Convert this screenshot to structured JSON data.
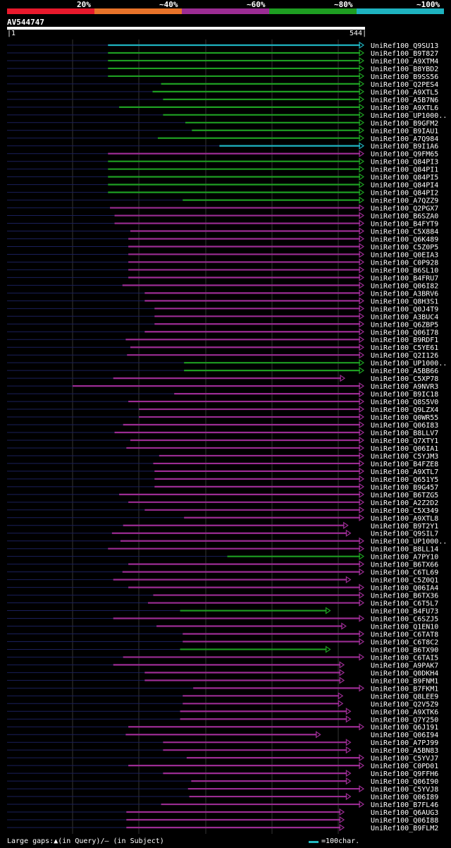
{
  "header": {
    "query_id": "AV544747",
    "start_label": "1",
    "end_label": "544",
    "identity_legend": [
      {
        "label": "20%",
        "color": "#e8192c"
      },
      {
        "label": "~40%",
        "color": "#e8732a"
      },
      {
        "label": "~60%",
        "color": "#9b2c93"
      },
      {
        "label": "~80%",
        "color": "#1e9e22"
      },
      {
        "label": "~100%",
        "color": "#1eb3c0"
      }
    ]
  },
  "footer": {
    "gaps_text": "Large gaps:▲(in Query)/— (in Subject)",
    "scale_text": "=100char."
  },
  "chart_data": {
    "type": "table",
    "query_length": 544,
    "hits": [
      {
        "id": "UniRef100_Q9SU13",
        "start": 154,
        "end": 544,
        "identity": "~100%"
      },
      {
        "id": "UniRef100_B9T827",
        "start": 154,
        "end": 544,
        "identity": "~80%"
      },
      {
        "id": "UniRef100_A9XTM4",
        "start": 154,
        "end": 544,
        "identity": "~80%"
      },
      {
        "id": "UniRef100_B8YBD2",
        "start": 154,
        "end": 544,
        "identity": "~80%"
      },
      {
        "id": "UniRef100_B9SS56",
        "start": 154,
        "end": 544,
        "identity": "~80%"
      },
      {
        "id": "UniRef100_Q2PES4",
        "start": 235,
        "end": 544,
        "identity": "~80%"
      },
      {
        "id": "UniRef100_A9XTL5",
        "start": 222,
        "end": 544,
        "identity": "~80%"
      },
      {
        "id": "UniRef100_A5B7N6",
        "start": 238,
        "end": 544,
        "identity": "~80%"
      },
      {
        "id": "UniRef100_A9XTL6",
        "start": 171,
        "end": 544,
        "identity": "~80%"
      },
      {
        "id": "UniRef100_UP1000..",
        "start": 238,
        "end": 544,
        "identity": "~80%"
      },
      {
        "id": "UniRef100_B9GFM2",
        "start": 272,
        "end": 544,
        "identity": "~80%"
      },
      {
        "id": "UniRef100_B9IAU1",
        "start": 282,
        "end": 544,
        "identity": "~80%"
      },
      {
        "id": "UniRef100_A7Q984",
        "start": 230,
        "end": 544,
        "identity": "~80%"
      },
      {
        "id": "UniRef100_B9I1A6",
        "start": 324,
        "end": 544,
        "identity": "~100%"
      },
      {
        "id": "UniRef100_Q9FM65",
        "start": 154,
        "end": 544,
        "identity": "~60%"
      },
      {
        "id": "UniRef100_Q84PI3",
        "start": 154,
        "end": 544,
        "identity": "~80%"
      },
      {
        "id": "UniRef100_Q84PI1",
        "start": 154,
        "end": 544,
        "identity": "~80%"
      },
      {
        "id": "UniRef100_Q84PI5",
        "start": 154,
        "end": 544,
        "identity": "~80%"
      },
      {
        "id": "UniRef100_Q84PI4",
        "start": 154,
        "end": 544,
        "identity": "~80%"
      },
      {
        "id": "UniRef100_Q84PI2",
        "start": 154,
        "end": 544,
        "identity": "~80%"
      },
      {
        "id": "UniRef100_A7QZZ9",
        "start": 268,
        "end": 544,
        "identity": "~80%"
      },
      {
        "id": "UniRef100_Q2PGX7",
        "start": 157,
        "end": 544,
        "identity": "~60%"
      },
      {
        "id": "UniRef100_B6SZA0",
        "start": 164,
        "end": 544,
        "identity": "~60%"
      },
      {
        "id": "UniRef100_B4FYT9",
        "start": 164,
        "end": 544,
        "identity": "~60%"
      },
      {
        "id": "UniRef100_C5X884",
        "start": 188,
        "end": 544,
        "identity": "~60%"
      },
      {
        "id": "UniRef100_Q6K489",
        "start": 185,
        "end": 544,
        "identity": "~60%"
      },
      {
        "id": "UniRef100_C5Z0P5",
        "start": 185,
        "end": 544,
        "identity": "~60%"
      },
      {
        "id": "UniRef100_Q0EIA3",
        "start": 185,
        "end": 544,
        "identity": "~60%"
      },
      {
        "id": "UniRef100_C0P928",
        "start": 185,
        "end": 544,
        "identity": "~60%"
      },
      {
        "id": "UniRef100_B6SL10",
        "start": 185,
        "end": 544,
        "identity": "~60%"
      },
      {
        "id": "UniRef100_B4FRU7",
        "start": 185,
        "end": 544,
        "identity": "~60%"
      },
      {
        "id": "UniRef100_Q06I82",
        "start": 176,
        "end": 544,
        "identity": "~60%"
      },
      {
        "id": "UniRef100_A3BRV6",
        "start": 210,
        "end": 544,
        "identity": "~60%"
      },
      {
        "id": "UniRef100_Q8H3S1",
        "start": 210,
        "end": 544,
        "identity": "~60%"
      },
      {
        "id": "UniRef100_Q0J4T9",
        "start": 225,
        "end": 544,
        "identity": "~60%"
      },
      {
        "id": "UniRef100_A3BUC4",
        "start": 225,
        "end": 544,
        "identity": "~60%"
      },
      {
        "id": "UniRef100_Q6ZBP5",
        "start": 225,
        "end": 544,
        "identity": "~60%"
      },
      {
        "id": "UniRef100_Q06I78",
        "start": 210,
        "end": 544,
        "identity": "~60%"
      },
      {
        "id": "UniRef100_B9RDF1",
        "start": 181,
        "end": 544,
        "identity": "~60%"
      },
      {
        "id": "UniRef100_C5YE61",
        "start": 188,
        "end": 544,
        "identity": "~60%"
      },
      {
        "id": "UniRef100_Q2I126",
        "start": 183,
        "end": 544,
        "identity": "~60%"
      },
      {
        "id": "UniRef100_UP1000..",
        "start": 270,
        "end": 544,
        "identity": "~80%"
      },
      {
        "id": "UniRef100_A5BB66",
        "start": 270,
        "end": 544,
        "identity": "~80%"
      },
      {
        "id": "UniRef100_C5XP78",
        "start": 162,
        "end": 515,
        "identity": "~60%"
      },
      {
        "id": "UniRef100_A9NVR3",
        "start": 100,
        "end": 544,
        "identity": "~60%"
      },
      {
        "id": "UniRef100_B9IC18",
        "start": 255,
        "end": 544,
        "identity": "~60%"
      },
      {
        "id": "UniRef100_Q8S5V0",
        "start": 185,
        "end": 544,
        "identity": "~60%"
      },
      {
        "id": "UniRef100_Q9LZX4",
        "start": 201,
        "end": 544,
        "identity": "~60%"
      },
      {
        "id": "UniRef100_Q0WR55",
        "start": 201,
        "end": 544,
        "identity": "~60%"
      },
      {
        "id": "UniRef100_Q06I83",
        "start": 177,
        "end": 544,
        "identity": "~60%"
      },
      {
        "id": "UniRef100_B8LLV7",
        "start": 164,
        "end": 544,
        "identity": "~60%"
      },
      {
        "id": "UniRef100_Q7XTY1",
        "start": 188,
        "end": 544,
        "identity": "~60%"
      },
      {
        "id": "UniRef100_Q06IA1",
        "start": 182,
        "end": 544,
        "identity": "~60%"
      },
      {
        "id": "UniRef100_C5YJM3",
        "start": 232,
        "end": 544,
        "identity": "~60%"
      },
      {
        "id": "UniRef100_B4FZE8",
        "start": 223,
        "end": 544,
        "identity": "~60%"
      },
      {
        "id": "UniRef100_A9XTL7",
        "start": 225,
        "end": 544,
        "identity": "~60%"
      },
      {
        "id": "UniRef100_Q651Y5",
        "start": 225,
        "end": 544,
        "identity": "~60%"
      },
      {
        "id": "UniRef100_B9G457",
        "start": 225,
        "end": 544,
        "identity": "~60%"
      },
      {
        "id": "UniRef100_B6TZG5",
        "start": 171,
        "end": 544,
        "identity": "~60%"
      },
      {
        "id": "UniRef100_A2Z2D2",
        "start": 185,
        "end": 544,
        "identity": "~60%"
      },
      {
        "id": "UniRef100_C5X349",
        "start": 210,
        "end": 544,
        "identity": "~60%"
      },
      {
        "id": "UniRef100_A9XTL8",
        "start": 270,
        "end": 544,
        "identity": "~60%"
      },
      {
        "id": "UniRef100_B9T2Y1",
        "start": 177,
        "end": 520,
        "identity": "~60%"
      },
      {
        "id": "UniRef100_Q9SIL7",
        "start": 160,
        "end": 524,
        "identity": "~60%"
      },
      {
        "id": "UniRef100_UP1000..",
        "start": 173,
        "end": 544,
        "identity": "~60%"
      },
      {
        "id": "UniRef100_B8LL14",
        "start": 154,
        "end": 544,
        "identity": "~60%"
      },
      {
        "id": "UniRef100_A7PY10",
        "start": 336,
        "end": 544,
        "identity": "~80%"
      },
      {
        "id": "UniRef100_B6TX66",
        "start": 185,
        "end": 544,
        "identity": "~60%"
      },
      {
        "id": "UniRef100_C6TL69",
        "start": 176,
        "end": 544,
        "identity": "~60%"
      },
      {
        "id": "UniRef100_C5Z0Q1",
        "start": 162,
        "end": 524,
        "identity": "~60%"
      },
      {
        "id": "UniRef100_Q06IA4",
        "start": 185,
        "end": 544,
        "identity": "~60%"
      },
      {
        "id": "UniRef100_B6TX36",
        "start": 223,
        "end": 544,
        "identity": "~60%"
      },
      {
        "id": "UniRef100_C6T5L7",
        "start": 215,
        "end": 544,
        "identity": "~60%"
      },
      {
        "id": "UniRef100_B4FU73",
        "start": 264,
        "end": 493,
        "identity": "~80%"
      },
      {
        "id": "UniRef100_C6SZJ5",
        "start": 162,
        "end": 544,
        "identity": "~60%"
      },
      {
        "id": "UniRef100_Q1EN10",
        "start": 228,
        "end": 517,
        "identity": "~60%"
      },
      {
        "id": "UniRef100_C6TAT8",
        "start": 268,
        "end": 544,
        "identity": "~60%"
      },
      {
        "id": "UniRef100_C6T8C2",
        "start": 268,
        "end": 544,
        "identity": "~60%"
      },
      {
        "id": "UniRef100_B6TX90",
        "start": 264,
        "end": 493,
        "identity": "~80%"
      },
      {
        "id": "UniRef100_C6TAI5",
        "start": 177,
        "end": 544,
        "identity": "~60%"
      },
      {
        "id": "UniRef100_A9PAK7",
        "start": 162,
        "end": 514,
        "identity": "~60%"
      },
      {
        "id": "UniRef100_Q0DKH4",
        "start": 210,
        "end": 514,
        "identity": "~60%"
      },
      {
        "id": "UniRef100_B9FNM1",
        "start": 210,
        "end": 514,
        "identity": "~60%"
      },
      {
        "id": "UniRef100_B7FKM1",
        "start": 284,
        "end": 544,
        "identity": "~60%"
      },
      {
        "id": "UniRef100_Q8LEE9",
        "start": 268,
        "end": 512,
        "identity": "~60%"
      },
      {
        "id": "UniRef100_Q2V5Z9",
        "start": 268,
        "end": 512,
        "identity": "~60%"
      },
      {
        "id": "UniRef100_A9XTK6",
        "start": 264,
        "end": 524,
        "identity": "~60%"
      },
      {
        "id": "UniRef100_Q7Y250",
        "start": 264,
        "end": 524,
        "identity": "~60%"
      },
      {
        "id": "UniRef100_Q6J191",
        "start": 185,
        "end": 544,
        "identity": "~60%"
      },
      {
        "id": "UniRef100_Q06I94",
        "start": 181,
        "end": 478,
        "identity": "~60%"
      },
      {
        "id": "UniRef100_A7PJ99",
        "start": 238,
        "end": 524,
        "identity": "~60%"
      },
      {
        "id": "UniRef100_A5BN83",
        "start": 238,
        "end": 524,
        "identity": "~60%"
      },
      {
        "id": "UniRef100_C5YVJ7",
        "start": 274,
        "end": 544,
        "identity": "~60%"
      },
      {
        "id": "UniRef100_C0PD01",
        "start": 185,
        "end": 544,
        "identity": "~60%"
      },
      {
        "id": "UniRef100_Q9FFH6",
        "start": 238,
        "end": 524,
        "identity": "~60%"
      },
      {
        "id": "UniRef100_Q06I90",
        "start": 281,
        "end": 524,
        "identity": "~60%"
      },
      {
        "id": "UniRef100_C5YVJ8",
        "start": 276,
        "end": 544,
        "identity": "~60%"
      },
      {
        "id": "UniRef100_Q06I89",
        "start": 278,
        "end": 524,
        "identity": "~60%"
      },
      {
        "id": "UniRef100_B7FL46",
        "start": 235,
        "end": 544,
        "identity": "~60%"
      },
      {
        "id": "UniRef100_Q6AUG3",
        "start": 182,
        "end": 514,
        "identity": "~60%"
      },
      {
        "id": "UniRef100_Q06I88",
        "start": 182,
        "end": 514,
        "identity": "~60%"
      },
      {
        "id": "UniRef100_B9FLM2",
        "start": 182,
        "end": 514,
        "identity": "~60%"
      }
    ]
  }
}
